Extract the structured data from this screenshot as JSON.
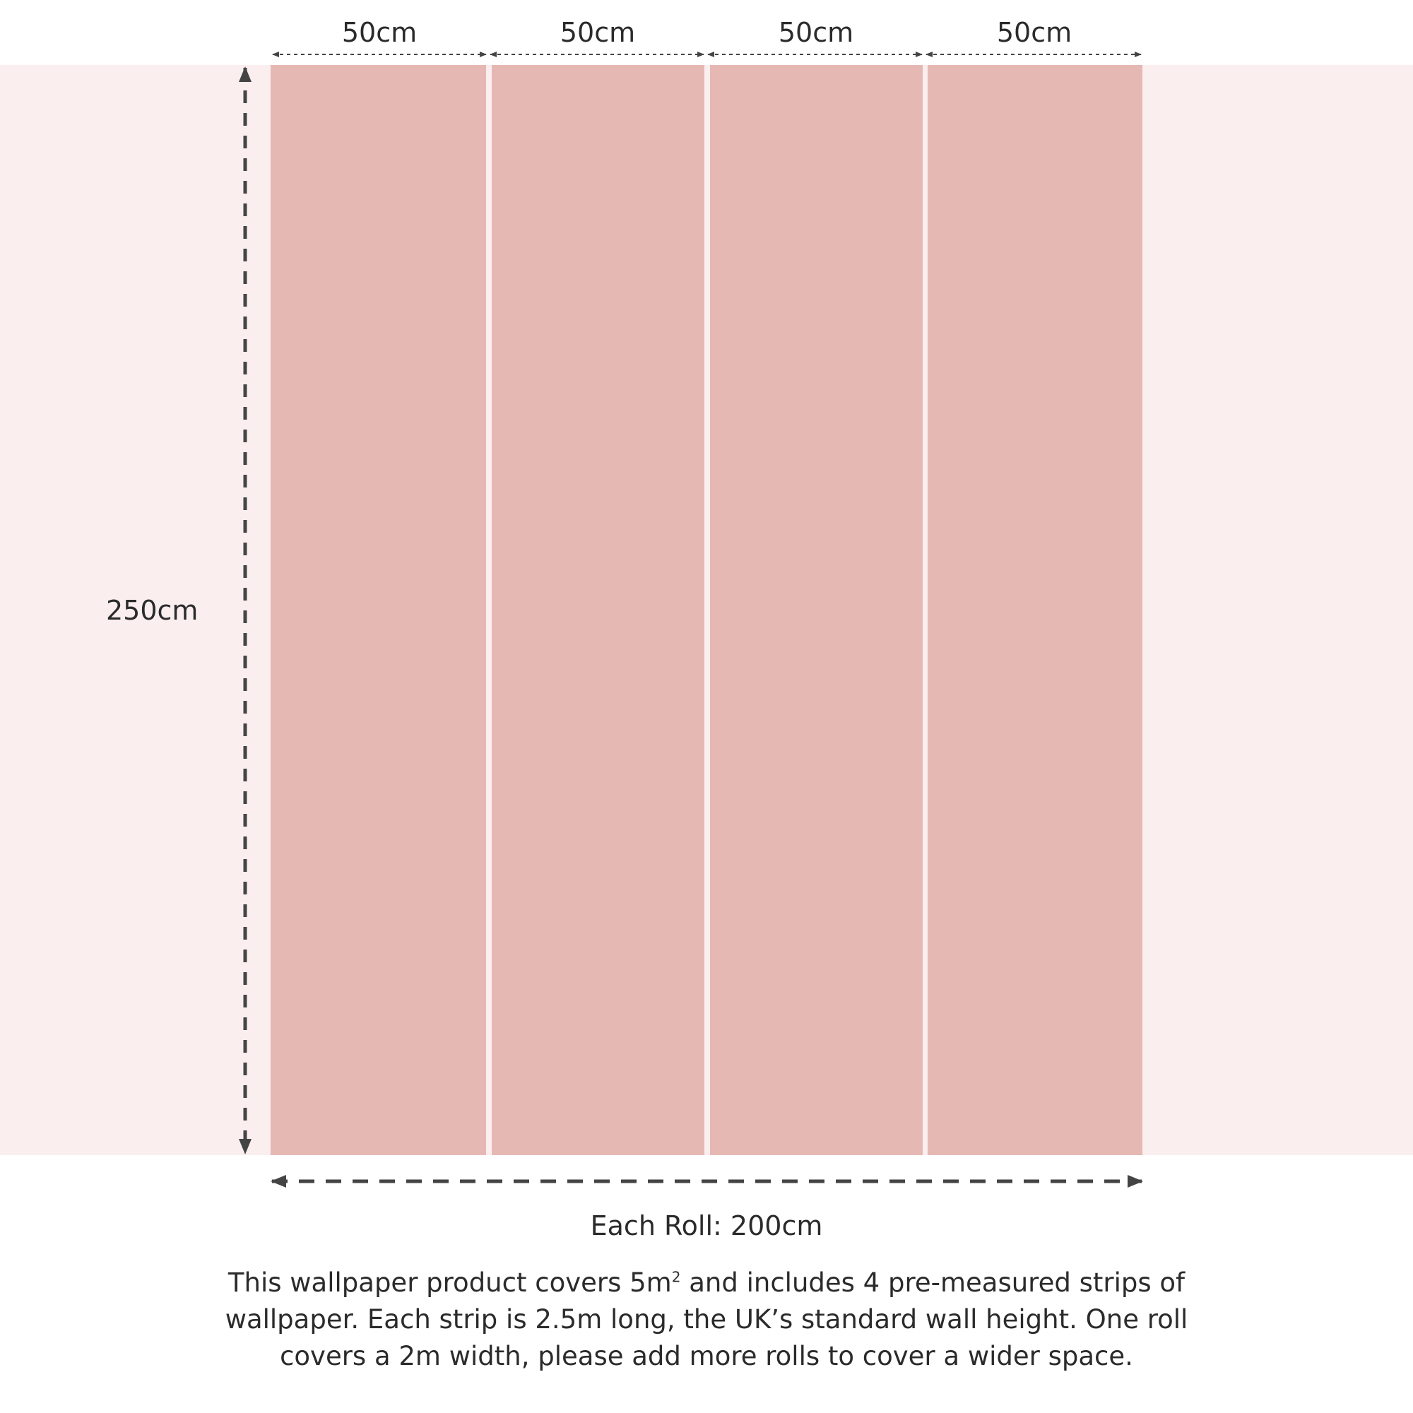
{
  "colors": {
    "wall_background": "#fbeeee",
    "strip_fill": "#e5b8b3",
    "arrow_color": "#444444",
    "text_color": "#2b2b2b"
  },
  "strips": [
    {
      "width_label": "50cm"
    },
    {
      "width_label": "50cm"
    },
    {
      "width_label": "50cm"
    },
    {
      "width_label": "50cm"
    }
  ],
  "height_label": "250cm",
  "roll_label": "Each Roll: 200cm",
  "description": {
    "part1": "This wallpaper product covers 5m",
    "superscript": "2",
    "part2": " and includes 4 pre-measured strips of wallpaper. Each strip is 2.5m long, the UK’s standard wall height. One roll covers a 2m width, please add more rolls to cover a wider space."
  }
}
